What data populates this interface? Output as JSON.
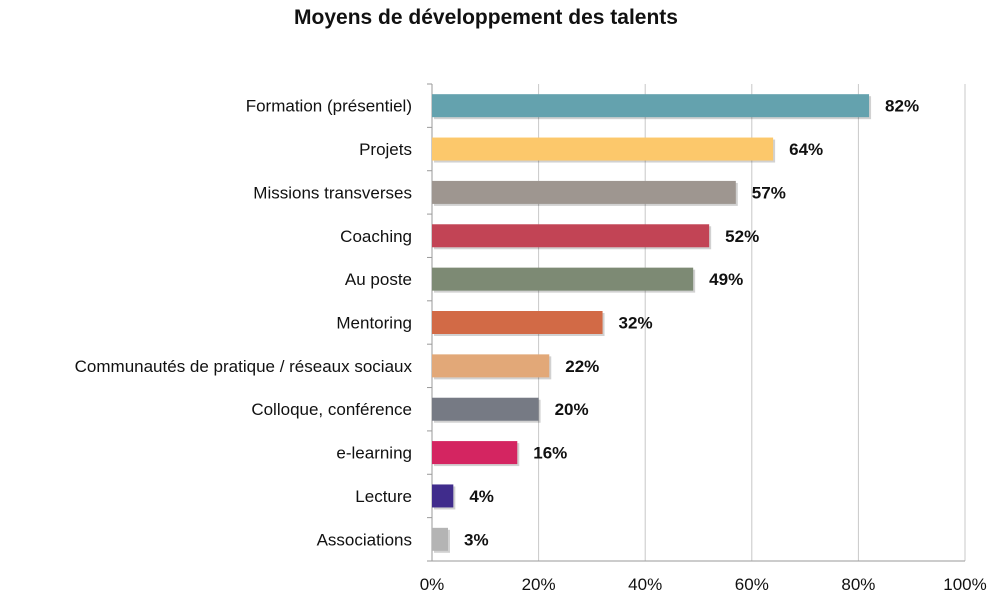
{
  "chart_data": {
    "type": "bar",
    "orientation": "horizontal",
    "title": "Moyens de développement des talents",
    "xlabel": "",
    "ylabel": "",
    "categories": [
      "Formation (présentiel)",
      "Projets",
      "Missions transverses",
      "Coaching",
      "Au poste",
      "Mentoring",
      "Communautés de pratique / réseaux sociaux",
      "Colloque, conférence",
      "e-learning",
      "Lecture",
      "Associations"
    ],
    "values": [
      82,
      64,
      57,
      52,
      49,
      32,
      22,
      20,
      16,
      4,
      3
    ],
    "value_labels": [
      "82%",
      "64%",
      "57%",
      "52%",
      "49%",
      "32%",
      "22%",
      "20%",
      "16%",
      "4%",
      "3%"
    ],
    "colors": [
      "#64a2ae",
      "#fcc86b",
      "#9e9690",
      "#c24455",
      "#7d8a74",
      "#d26a46",
      "#e2a878",
      "#767a84",
      "#d42561",
      "#402c8c",
      "#b4b4b4"
    ],
    "xlim": [
      0,
      100
    ],
    "ticks": [
      0,
      20,
      40,
      60,
      80,
      100
    ],
    "tick_labels": [
      "0%",
      "20%",
      "40%",
      "60%",
      "80%",
      "100%"
    ],
    "grid": true,
    "gridline_color": "#c8c8c8",
    "legend": "none"
  }
}
